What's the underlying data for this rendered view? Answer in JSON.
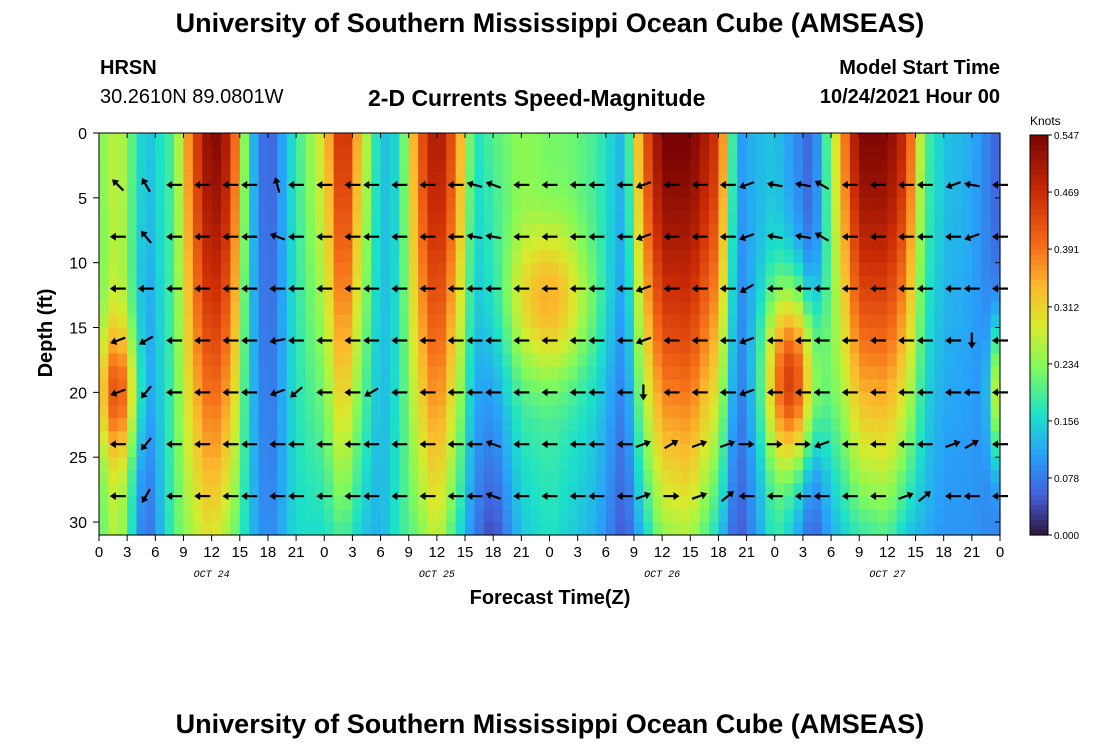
{
  "header": {
    "title": "University of Southern Mississippi Ocean Cube (AMSEAS)",
    "station": "HRSN",
    "coords": "30.2610N  89.0801W",
    "subtitle": "2-D Currents Speed-Magnitude",
    "model_label": "Model Start Time",
    "model_time": "10/24/2021 Hour 00"
  },
  "footer": {
    "title": "University of Southern Mississippi Ocean Cube (AMSEAS)"
  },
  "chart_data": {
    "type": "heatmap",
    "title": "2-D Currents Speed-Magnitude",
    "xlabel": "Forecast Time(Z)",
    "ylabel": "Depth (ft)",
    "x_range": [
      0,
      96
    ],
    "y_range": [
      0,
      31
    ],
    "x_tick_labels": [
      "0",
      "3",
      "6",
      "9",
      "12",
      "15",
      "18",
      "21",
      "0",
      "3",
      "6",
      "9",
      "12",
      "15",
      "18",
      "21",
      "0",
      "3",
      "6",
      "9",
      "12",
      "15",
      "18",
      "21",
      "0",
      "3",
      "6",
      "9",
      "12",
      "15",
      "18",
      "21",
      "0"
    ],
    "day_labels": [
      "OCT 24",
      "OCT 25",
      "OCT 26",
      "OCT 27"
    ],
    "y_ticks": [
      0,
      5,
      10,
      15,
      20,
      25,
      30
    ],
    "colorbar": {
      "unit": "Knots",
      "tick_labels": [
        "0.547",
        "0.469",
        "0.391",
        "0.312",
        "0.234",
        "0.156",
        "0.078",
        "0.000"
      ],
      "min": 0.0,
      "max": 0.547
    },
    "speed_columns": [
      {
        "hour": 0,
        "top": 0.22,
        "bottom": 0.2
      },
      {
        "hour": 2,
        "top": 0.28,
        "bottom": 0.28
      },
      {
        "hour": 5,
        "top": 0.13,
        "bottom": 0.05
      },
      {
        "hour": 8,
        "top": 0.2,
        "bottom": 0.2
      },
      {
        "hour": 10,
        "top": 0.42,
        "bottom": 0.26
      },
      {
        "hour": 12,
        "top": 0.55,
        "bottom": 0.3
      },
      {
        "hour": 14,
        "top": 0.48,
        "bottom": 0.24
      },
      {
        "hour": 16,
        "top": 0.15,
        "bottom": 0.14
      },
      {
        "hour": 18,
        "top": 0.04,
        "bottom": 0.08
      },
      {
        "hour": 21,
        "top": 0.18,
        "bottom": 0.16
      },
      {
        "hour": 24,
        "top": 0.3,
        "bottom": 0.16
      },
      {
        "hour": 26,
        "top": 0.5,
        "bottom": 0.2
      },
      {
        "hour": 28,
        "top": 0.3,
        "bottom": 0.14
      },
      {
        "hour": 30,
        "top": 0.13,
        "bottom": 0.12
      },
      {
        "hour": 32,
        "top": 0.16,
        "bottom": 0.18
      },
      {
        "hour": 34,
        "top": 0.4,
        "bottom": 0.22
      },
      {
        "hour": 36,
        "top": 0.52,
        "bottom": 0.28
      },
      {
        "hour": 38,
        "top": 0.4,
        "bottom": 0.18
      },
      {
        "hour": 40,
        "top": 0.16,
        "bottom": 0.08
      },
      {
        "hour": 42,
        "top": 0.2,
        "bottom": 0.03
      },
      {
        "hour": 45,
        "top": 0.24,
        "bottom": 0.14
      },
      {
        "hour": 48,
        "top": 0.22,
        "bottom": 0.17
      },
      {
        "hour": 50,
        "top": 0.22,
        "bottom": 0.15
      },
      {
        "hour": 53,
        "top": 0.19,
        "bottom": 0.12
      },
      {
        "hour": 56,
        "top": 0.12,
        "bottom": 0.04
      },
      {
        "hour": 58,
        "top": 0.4,
        "bottom": 0.14
      },
      {
        "hour": 60,
        "top": 0.55,
        "bottom": 0.24
      },
      {
        "hour": 63,
        "top": 0.55,
        "bottom": 0.26
      },
      {
        "hour": 66,
        "top": 0.45,
        "bottom": 0.15
      },
      {
        "hour": 68,
        "top": 0.1,
        "bottom": 0.04
      },
      {
        "hour": 70,
        "top": 0.13,
        "bottom": 0.1
      },
      {
        "hour": 72,
        "top": 0.14,
        "bottom": 0.18
      },
      {
        "hour": 74,
        "top": 0.1,
        "bottom": 0.12
      },
      {
        "hour": 76,
        "top": 0.05,
        "bottom": 0.04
      },
      {
        "hour": 78,
        "top": 0.24,
        "bottom": 0.12
      },
      {
        "hour": 81,
        "top": 0.54,
        "bottom": 0.18
      },
      {
        "hour": 84,
        "top": 0.54,
        "bottom": 0.2
      },
      {
        "hour": 86,
        "top": 0.46,
        "bottom": 0.14
      },
      {
        "hour": 88,
        "top": 0.2,
        "bottom": 0.12
      },
      {
        "hour": 90,
        "top": 0.14,
        "bottom": 0.1
      },
      {
        "hour": 93,
        "top": 0.12,
        "bottom": 0.1
      },
      {
        "hour": 96,
        "top": 0.05,
        "bottom": 0.08
      }
    ],
    "blobs": [
      {
        "hour": 2,
        "depth": 20,
        "amp": 0.16,
        "sh": 1.6,
        "sd": 3.5
      },
      {
        "hour": 74,
        "depth": 19,
        "amp": 0.33,
        "sh": 2.0,
        "sd": 5.0
      },
      {
        "hour": 48,
        "depth": 13,
        "amp": 0.14,
        "sh": 3.0,
        "sd": 4.0
      },
      {
        "hour": 96,
        "depth": 20,
        "amp": 0.22,
        "sh": 0.8,
        "sd": 4.0
      }
    ],
    "arrow_hours": [
      2,
      5,
      8,
      11,
      14,
      16,
      19,
      21,
      24,
      27,
      29,
      32,
      35,
      38,
      40,
      42,
      45,
      48,
      51,
      53,
      56,
      58,
      61,
      64,
      67,
      69,
      72,
      75,
      77,
      80,
      83,
      86,
      88,
      91,
      93,
      96
    ],
    "arrow_depths": [
      4,
      8,
      12,
      16,
      20,
      24,
      28
    ],
    "arrow_directions_deg": [
      [
        135,
        120,
        180,
        180,
        180,
        180,
        105,
        180,
        180,
        180,
        180,
        180,
        180,
        180,
        165,
        160,
        180,
        180,
        180,
        180,
        180,
        200,
        180,
        180,
        180,
        200,
        170,
        170,
        150,
        180,
        180,
        180,
        180,
        200,
        170,
        180
      ],
      [
        180,
        130,
        180,
        180,
        180,
        180,
        160,
        180,
        180,
        180,
        180,
        180,
        180,
        180,
        170,
        170,
        180,
        180,
        180,
        180,
        180,
        200,
        180,
        180,
        180,
        200,
        170,
        170,
        150,
        180,
        180,
        180,
        180,
        180,
        200,
        180
      ],
      [
        180,
        180,
        180,
        180,
        180,
        180,
        180,
        180,
        180,
        180,
        180,
        180,
        180,
        180,
        180,
        180,
        180,
        180,
        180,
        180,
        180,
        200,
        180,
        180,
        180,
        210,
        180,
        180,
        180,
        180,
        180,
        180,
        180,
        180,
        180,
        180
      ],
      [
        200,
        210,
        180,
        180,
        180,
        180,
        190,
        180,
        180,
        180,
        180,
        180,
        180,
        180,
        180,
        180,
        180,
        180,
        180,
        180,
        180,
        200,
        180,
        180,
        180,
        200,
        180,
        180,
        180,
        180,
        180,
        180,
        180,
        180,
        270,
        180
      ],
      [
        200,
        230,
        180,
        180,
        180,
        180,
        200,
        220,
        180,
        180,
        210,
        180,
        180,
        180,
        180,
        180,
        180,
        180,
        180,
        180,
        180,
        270,
        180,
        180,
        180,
        200,
        180,
        180,
        180,
        180,
        180,
        180,
        180,
        180,
        180,
        180
      ],
      [
        180,
        230,
        180,
        180,
        180,
        180,
        180,
        180,
        180,
        180,
        180,
        180,
        180,
        180,
        180,
        160,
        180,
        180,
        180,
        180,
        180,
        20,
        30,
        20,
        20,
        0,
        0,
        0,
        200,
        180,
        180,
        180,
        180,
        20,
        30,
        180
      ],
      [
        180,
        240,
        180,
        180,
        180,
        180,
        180,
        180,
        180,
        180,
        180,
        180,
        180,
        180,
        180,
        160,
        180,
        180,
        180,
        180,
        180,
        20,
        0,
        20,
        40,
        180,
        180,
        180,
        180,
        180,
        180,
        20,
        40,
        180,
        180,
        180
      ]
    ]
  }
}
